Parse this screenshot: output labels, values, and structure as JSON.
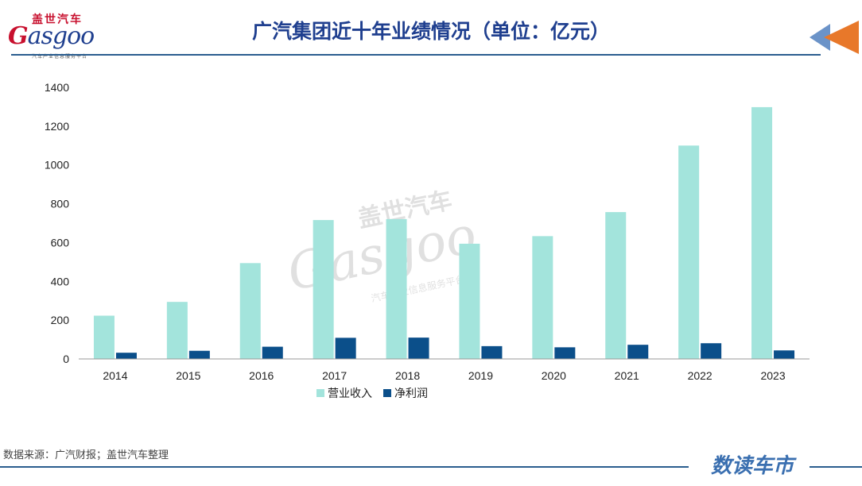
{
  "logo": {
    "cn": "盖世汽车",
    "en_initial": "G",
    "en_rest": "asgoo",
    "tagline": "汽车产业信息服务平台"
  },
  "title": "广汽集团近十年业绩情况（单位：亿元）",
  "source": "数据来源：广汽财报；盖世汽车整理",
  "brand": "数读车市",
  "watermark": {
    "cn": "盖世汽车",
    "en": "Gasgoo",
    "tagline": "汽车产业信息服务平台"
  },
  "colors": {
    "revenue": "#a3e4dc",
    "profit": "#0b4f8a",
    "accent": "#1f3f8f"
  },
  "chart_data": {
    "type": "bar",
    "categories": [
      "2014",
      "2015",
      "2016",
      "2017",
      "2018",
      "2019",
      "2020",
      "2021",
      "2022",
      "2023"
    ],
    "series": [
      {
        "name": "营业收入",
        "values": [
          223,
          294,
          494,
          716,
          721,
          594,
          633,
          757,
          1100,
          1298
        ]
      },
      {
        "name": "净利润",
        "values": [
          32,
          42,
          63,
          109,
          110,
          66,
          60,
          73,
          81,
          44
        ]
      }
    ],
    "yticks": [
      "0",
      "200",
      "400",
      "600",
      "800",
      "1000",
      "1200",
      "1400"
    ],
    "ylim": [
      0,
      1400
    ],
    "grid": false,
    "legend_position": "bottom"
  }
}
